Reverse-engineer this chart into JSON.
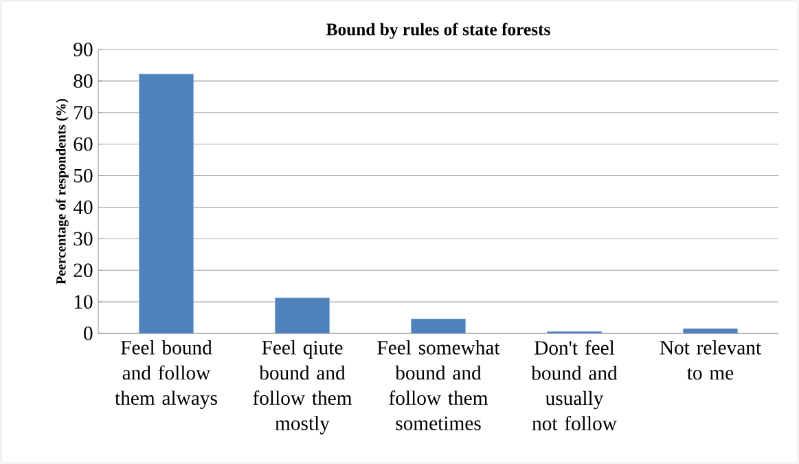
{
  "chart_data": {
    "type": "bar",
    "title": "Bound by rules of state forests",
    "ylabel": "Peercentage of respondents (%)",
    "categories": [
      "Feel bound and follow them always",
      "Feel qiute bound and follow them mostly",
      "Feel somewhat bound and follow them sometimes",
      "Don't feel bound and usually not follow",
      "Not relevant to me"
    ],
    "values": [
      82.2,
      11.3,
      4.6,
      0.6,
      1.5
    ],
    "color": "#4f81bd",
    "ylim": [
      0,
      90
    ],
    "yticks": [
      0,
      10,
      20,
      30,
      40,
      50,
      60,
      70,
      80,
      90
    ],
    "grid": "y"
  }
}
